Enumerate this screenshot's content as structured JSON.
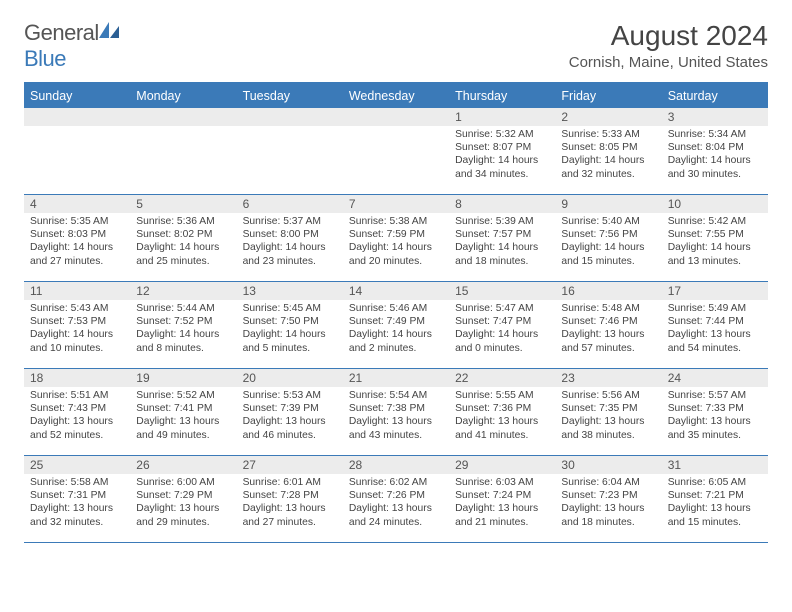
{
  "logo": {
    "word1": "General",
    "word2": "Blue"
  },
  "title": "August 2024",
  "location": "Cornish, Maine, United States",
  "header_color": "#3b7ab8",
  "daynum_bg": "#ececec",
  "text_color": "#444444",
  "weekdays": [
    "Sunday",
    "Monday",
    "Tuesday",
    "Wednesday",
    "Thursday",
    "Friday",
    "Saturday"
  ],
  "weeks": [
    [
      {
        "n": "",
        "lines": ""
      },
      {
        "n": "",
        "lines": ""
      },
      {
        "n": "",
        "lines": ""
      },
      {
        "n": "",
        "lines": ""
      },
      {
        "n": "1",
        "lines": "Sunrise: 5:32 AM\nSunset: 8:07 PM\nDaylight: 14 hours and 34 minutes."
      },
      {
        "n": "2",
        "lines": "Sunrise: 5:33 AM\nSunset: 8:05 PM\nDaylight: 14 hours and 32 minutes."
      },
      {
        "n": "3",
        "lines": "Sunrise: 5:34 AM\nSunset: 8:04 PM\nDaylight: 14 hours and 30 minutes."
      }
    ],
    [
      {
        "n": "4",
        "lines": "Sunrise: 5:35 AM\nSunset: 8:03 PM\nDaylight: 14 hours and 27 minutes."
      },
      {
        "n": "5",
        "lines": "Sunrise: 5:36 AM\nSunset: 8:02 PM\nDaylight: 14 hours and 25 minutes."
      },
      {
        "n": "6",
        "lines": "Sunrise: 5:37 AM\nSunset: 8:00 PM\nDaylight: 14 hours and 23 minutes."
      },
      {
        "n": "7",
        "lines": "Sunrise: 5:38 AM\nSunset: 7:59 PM\nDaylight: 14 hours and 20 minutes."
      },
      {
        "n": "8",
        "lines": "Sunrise: 5:39 AM\nSunset: 7:57 PM\nDaylight: 14 hours and 18 minutes."
      },
      {
        "n": "9",
        "lines": "Sunrise: 5:40 AM\nSunset: 7:56 PM\nDaylight: 14 hours and 15 minutes."
      },
      {
        "n": "10",
        "lines": "Sunrise: 5:42 AM\nSunset: 7:55 PM\nDaylight: 14 hours and 13 minutes."
      }
    ],
    [
      {
        "n": "11",
        "lines": "Sunrise: 5:43 AM\nSunset: 7:53 PM\nDaylight: 14 hours and 10 minutes."
      },
      {
        "n": "12",
        "lines": "Sunrise: 5:44 AM\nSunset: 7:52 PM\nDaylight: 14 hours and 8 minutes."
      },
      {
        "n": "13",
        "lines": "Sunrise: 5:45 AM\nSunset: 7:50 PM\nDaylight: 14 hours and 5 minutes."
      },
      {
        "n": "14",
        "lines": "Sunrise: 5:46 AM\nSunset: 7:49 PM\nDaylight: 14 hours and 2 minutes."
      },
      {
        "n": "15",
        "lines": "Sunrise: 5:47 AM\nSunset: 7:47 PM\nDaylight: 14 hours and 0 minutes."
      },
      {
        "n": "16",
        "lines": "Sunrise: 5:48 AM\nSunset: 7:46 PM\nDaylight: 13 hours and 57 minutes."
      },
      {
        "n": "17",
        "lines": "Sunrise: 5:49 AM\nSunset: 7:44 PM\nDaylight: 13 hours and 54 minutes."
      }
    ],
    [
      {
        "n": "18",
        "lines": "Sunrise: 5:51 AM\nSunset: 7:43 PM\nDaylight: 13 hours and 52 minutes."
      },
      {
        "n": "19",
        "lines": "Sunrise: 5:52 AM\nSunset: 7:41 PM\nDaylight: 13 hours and 49 minutes."
      },
      {
        "n": "20",
        "lines": "Sunrise: 5:53 AM\nSunset: 7:39 PM\nDaylight: 13 hours and 46 minutes."
      },
      {
        "n": "21",
        "lines": "Sunrise: 5:54 AM\nSunset: 7:38 PM\nDaylight: 13 hours and 43 minutes."
      },
      {
        "n": "22",
        "lines": "Sunrise: 5:55 AM\nSunset: 7:36 PM\nDaylight: 13 hours and 41 minutes."
      },
      {
        "n": "23",
        "lines": "Sunrise: 5:56 AM\nSunset: 7:35 PM\nDaylight: 13 hours and 38 minutes."
      },
      {
        "n": "24",
        "lines": "Sunrise: 5:57 AM\nSunset: 7:33 PM\nDaylight: 13 hours and 35 minutes."
      }
    ],
    [
      {
        "n": "25",
        "lines": "Sunrise: 5:58 AM\nSunset: 7:31 PM\nDaylight: 13 hours and 32 minutes."
      },
      {
        "n": "26",
        "lines": "Sunrise: 6:00 AM\nSunset: 7:29 PM\nDaylight: 13 hours and 29 minutes."
      },
      {
        "n": "27",
        "lines": "Sunrise: 6:01 AM\nSunset: 7:28 PM\nDaylight: 13 hours and 27 minutes."
      },
      {
        "n": "28",
        "lines": "Sunrise: 6:02 AM\nSunset: 7:26 PM\nDaylight: 13 hours and 24 minutes."
      },
      {
        "n": "29",
        "lines": "Sunrise: 6:03 AM\nSunset: 7:24 PM\nDaylight: 13 hours and 21 minutes."
      },
      {
        "n": "30",
        "lines": "Sunrise: 6:04 AM\nSunset: 7:23 PM\nDaylight: 13 hours and 18 minutes."
      },
      {
        "n": "31",
        "lines": "Sunrise: 6:05 AM\nSunset: 7:21 PM\nDaylight: 13 hours and 15 minutes."
      }
    ]
  ]
}
